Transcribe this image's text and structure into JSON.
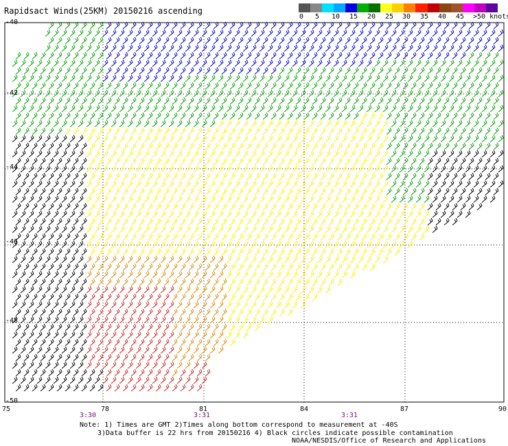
{
  "title": "Rapidsact Winds(25KM) 20150216 ascending",
  "legend": {
    "colors": [
      "#555555",
      "#888888",
      "#00e0ff",
      "#00a8ff",
      "#0000e0",
      "#00b000",
      "#007000",
      "#ffff20",
      "#ffd000",
      "#ff8000",
      "#ff2000",
      "#c00000",
      "#8b4513",
      "#a0522d",
      "#ff00ff",
      "#c000c0",
      "#6000a0"
    ],
    "labels": [
      "0",
      "5",
      "10",
      "15",
      "20",
      "25",
      "30",
      "35",
      "40",
      "45",
      ">50 knots"
    ]
  },
  "axes": {
    "lat_labels": [
      "-40",
      "-42",
      "-44",
      "-46",
      "-48",
      "-50"
    ],
    "lon_labels": [
      "75",
      "78",
      "81",
      "84",
      "87",
      "90"
    ]
  },
  "times": [
    "3:30",
    "3:31",
    "3:31"
  ],
  "notes": [
    "Note: 1) Times are GMT 2)Times along bottom correspond to measurement at -40S",
    "3)Data buffer is 22 hrs from 20150216 4) Black circles indicate possible contamination"
  ],
  "credit": "NOAA/NESDIS/Office of Research and Applications",
  "wind_colors": {
    "blue": "#0000cc",
    "green": "#00a000",
    "yellow": "#ffee00",
    "orange": "#dd8800",
    "red": "#cc2222",
    "black": "#000000"
  }
}
